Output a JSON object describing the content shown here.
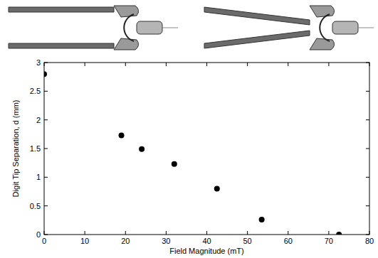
{
  "chart_data": {
    "type": "scatter",
    "x": [
      0,
      19,
      24,
      32,
      42.5,
      53.5,
      72.5
    ],
    "values": [
      2.8,
      1.73,
      1.49,
      1.23,
      0.8,
      0.26,
      0.0
    ],
    "xlabel": "Field Magnitude (mT)",
    "ylabel": "Digit Tip Separation, d (mm)",
    "xlim": [
      0,
      80
    ],
    "ylim": [
      0,
      3
    ],
    "xticks": [
      0,
      10,
      20,
      30,
      40,
      50,
      60,
      70,
      80
    ],
    "yticks": [
      0,
      0.5,
      1,
      1.5,
      2,
      2.5,
      3
    ],
    "color": "#000000",
    "marker": "circle",
    "grid": false
  }
}
